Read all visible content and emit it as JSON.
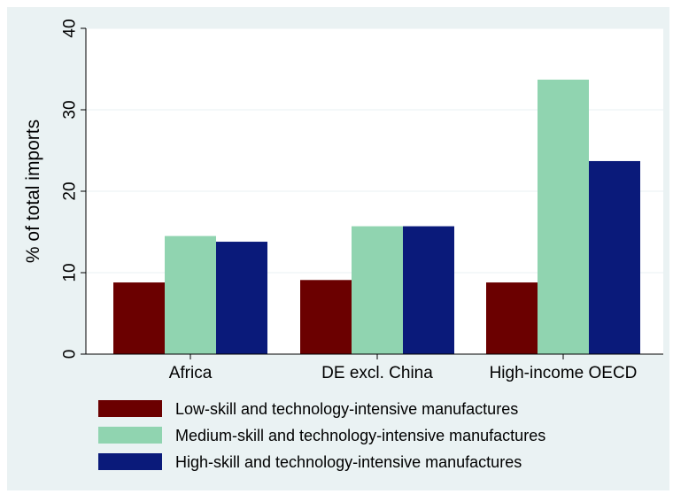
{
  "chart_data": {
    "type": "bar",
    "categories": [
      "Africa",
      "DE excl. China",
      "High-income OECD"
    ],
    "series": [
      {
        "name": "Low-skill and technology-intensive manufactures",
        "values": [
          8.8,
          9.1,
          8.8
        ],
        "color": "#6b0000"
      },
      {
        "name": "Medium-skill and technology-intensive manufactures",
        "values": [
          14.5,
          15.7,
          33.7
        ],
        "color": "#90d4b0"
      },
      {
        "name": "High-skill and technology-intensive manufactures",
        "values": [
          13.8,
          15.7,
          23.7
        ],
        "color": "#0a1a7a"
      }
    ],
    "ylabel": "% of total imports",
    "xlabel": "",
    "ylim": [
      0,
      40
    ],
    "yticks": [
      "0",
      "10",
      "20",
      "30",
      "40"
    ],
    "grid": true,
    "legend": "bottom",
    "plot_background": "#ffffff",
    "figure_background": "#eaf2f3"
  }
}
